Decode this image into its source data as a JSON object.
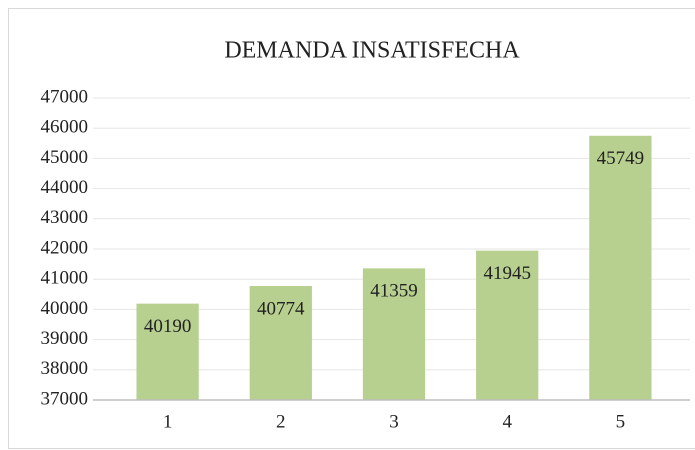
{
  "chart_data": {
    "type": "bar",
    "title": "DEMANDA INSATISFECHA",
    "categories": [
      "1",
      "2",
      "3",
      "4",
      "5"
    ],
    "values": [
      40190,
      40774,
      41359,
      41945,
      45749
    ],
    "color": "#b7cf8f",
    "ylim": [
      37000,
      47000
    ],
    "yticks": [
      37000,
      38000,
      39000,
      40000,
      41000,
      42000,
      43000,
      44000,
      45000,
      46000,
      47000
    ],
    "grid": true
  }
}
